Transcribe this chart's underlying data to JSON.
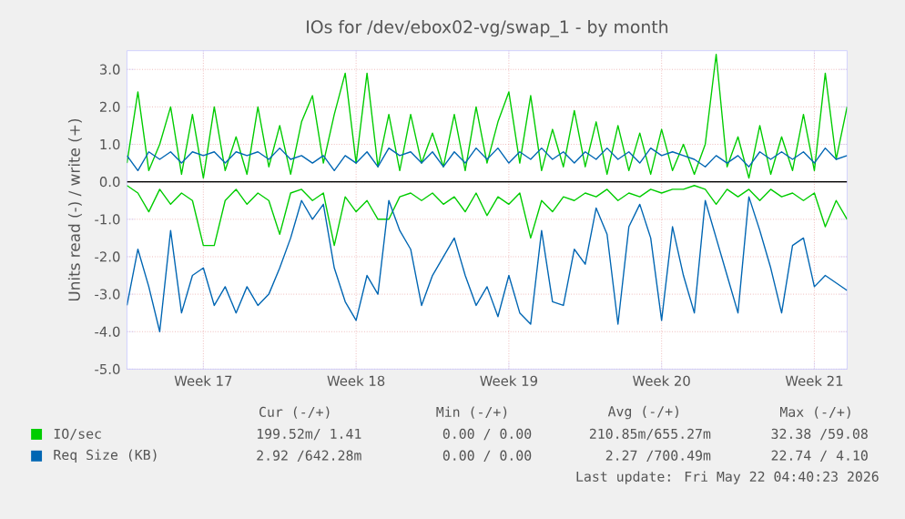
{
  "chart_data": {
    "type": "line",
    "title": "IOs for /dev/ebox02-vg/swap_1 - by month",
    "ylabel": "Units read (-) / write (+)",
    "xlim": [
      "2026-04-20",
      "2026-05-23"
    ],
    "ylim": [
      -5,
      3.5
    ],
    "xticks": [
      {
        "value": "2026-04-23T12:00",
        "label": "Week 17"
      },
      {
        "value": "2026-04-30T12:00",
        "label": "Week 18"
      },
      {
        "value": "2026-05-07T12:00",
        "label": "Week 19"
      },
      {
        "value": "2026-05-14T12:00",
        "label": "Week 20"
      },
      {
        "value": "2026-05-21T12:00",
        "label": "Week 21"
      }
    ],
    "yticks": [
      {
        "value": -5,
        "label": "-5.0"
      },
      {
        "value": -4,
        "label": "-4.0"
      },
      {
        "value": -3,
        "label": "-3.0"
      },
      {
        "value": -2,
        "label": "-2.0"
      },
      {
        "value": -1,
        "label": "-1.0"
      },
      {
        "value": 0,
        "label": "0.0"
      },
      {
        "value": 1,
        "label": "1.0"
      },
      {
        "value": 2,
        "label": "2.0"
      },
      {
        "value": 3,
        "label": "3.0"
      }
    ],
    "grid": true,
    "legend": "bottom",
    "marker": "none",
    "line_style": "solid",
    "ref_lines": [
      {
        "axis": "y",
        "value": 0,
        "color": "#000000"
      }
    ],
    "x": [
      "2026-04-20",
      "2026-04-20T12:00",
      "2026-04-21",
      "2026-04-21T12:00",
      "2026-04-22",
      "2026-04-22T12:00",
      "2026-04-23",
      "2026-04-23T12:00",
      "2026-04-24",
      "2026-04-24T12:00",
      "2026-04-25",
      "2026-04-25T12:00",
      "2026-04-26",
      "2026-04-26T12:00",
      "2026-04-27",
      "2026-04-27T12:00",
      "2026-04-28",
      "2026-04-28T12:00",
      "2026-04-29",
      "2026-04-29T12:00",
      "2026-04-30",
      "2026-04-30T12:00",
      "2026-05-01",
      "2026-05-01T12:00",
      "2026-05-02",
      "2026-05-02T12:00",
      "2026-05-03",
      "2026-05-03T12:00",
      "2026-05-04",
      "2026-05-04T12:00",
      "2026-05-05",
      "2026-05-05T12:00",
      "2026-05-06",
      "2026-05-06T12:00",
      "2026-05-07",
      "2026-05-07T12:00",
      "2026-05-08",
      "2026-05-08T12:00",
      "2026-05-09",
      "2026-05-09T12:00",
      "2026-05-10",
      "2026-05-10T12:00",
      "2026-05-11",
      "2026-05-11T12:00",
      "2026-05-12",
      "2026-05-12T12:00",
      "2026-05-13",
      "2026-05-13T12:00",
      "2026-05-14",
      "2026-05-14T12:00",
      "2026-05-15",
      "2026-05-15T12:00",
      "2026-05-16",
      "2026-05-16T12:00",
      "2026-05-17",
      "2026-05-17T12:00",
      "2026-05-18",
      "2026-05-18T12:00",
      "2026-05-19",
      "2026-05-19T12:00",
      "2026-05-20",
      "2026-05-20T12:00",
      "2026-05-21",
      "2026-05-21T12:00",
      "2026-05-22",
      "2026-05-22T12:00",
      "2026-05-23"
    ],
    "series": [
      {
        "color": "#00cc00",
        "values": [
          -0.1,
          -0.3,
          -0.8,
          -0.2,
          -0.6,
          -0.3,
          -0.5,
          -1.7,
          -1.7,
          -0.5,
          -0.2,
          -0.6,
          -0.3,
          -0.5,
          -1.4,
          -0.3,
          -0.2,
          -0.5,
          -0.3,
          -1.7,
          -0.4,
          -0.8,
          -0.5,
          -1.0,
          -1.0,
          -0.4,
          -0.3,
          -0.5,
          -0.3,
          -0.6,
          -0.4,
          -0.8,
          -0.3,
          -0.9,
          -0.4,
          -0.6,
          -0.3,
          -1.5,
          -0.5,
          -0.8,
          -0.4,
          -0.5,
          -0.3,
          -0.4,
          -0.2,
          -0.5,
          -0.3,
          -0.4,
          -0.2,
          -0.3,
          -0.2,
          -0.2,
          -0.1,
          -0.2,
          -0.6,
          -0.2,
          -0.4,
          -0.2,
          -0.5,
          -0.2,
          -0.4,
          -0.3,
          -0.5,
          -0.3,
          -1.2,
          -0.5,
          -1.0
        ]
      },
      {
        "name": "IO/sec",
        "color": "#00cc00",
        "values": [
          0.5,
          2.4,
          0.3,
          1.0,
          2.0,
          0.2,
          1.8,
          0.1,
          2.0,
          0.3,
          1.2,
          0.2,
          2.0,
          0.4,
          1.5,
          0.2,
          1.6,
          2.3,
          0.5,
          1.8,
          2.9,
          0.5,
          2.9,
          0.4,
          1.8,
          0.3,
          1.8,
          0.5,
          1.3,
          0.4,
          1.8,
          0.3,
          2.0,
          0.5,
          1.6,
          2.4,
          0.5,
          2.3,
          0.3,
          1.4,
          0.4,
          1.9,
          0.4,
          1.6,
          0.2,
          1.5,
          0.3,
          1.3,
          0.2,
          1.4,
          0.3,
          1.0,
          0.2,
          1.0,
          3.4,
          0.4,
          1.2,
          0.1,
          1.5,
          0.2,
          1.2,
          0.3,
          1.8,
          0.3,
          2.9,
          0.6,
          2.0
        ]
      },
      {
        "color": "#0066b3",
        "values": [
          -3.3,
          -1.8,
          -2.8,
          -4.0,
          -1.3,
          -3.5,
          -2.5,
          -2.3,
          -3.3,
          -2.8,
          -3.5,
          -2.8,
          -3.3,
          -3.0,
          -2.3,
          -1.5,
          -0.5,
          -1.0,
          -0.6,
          -2.3,
          -3.2,
          -3.7,
          -2.5,
          -3.0,
          -0.5,
          -1.3,
          -1.8,
          -3.3,
          -2.5,
          -2.0,
          -1.5,
          -2.5,
          -3.3,
          -2.8,
          -3.6,
          -2.5,
          -3.5,
          -3.8,
          -1.3,
          -3.2,
          -3.3,
          -1.8,
          -2.2,
          -0.7,
          -1.4,
          -3.8,
          -1.2,
          -0.6,
          -1.5,
          -3.7,
          -1.2,
          -2.5,
          -3.5,
          -0.5,
          -1.5,
          -2.5,
          -3.5,
          -0.4,
          -1.3,
          -2.3,
          -3.5,
          -1.7,
          -1.5,
          -2.8,
          -2.5,
          -2.7,
          -2.9
        ]
      },
      {
        "name": "Req Size (KB)",
        "color": "#0066b3",
        "values": [
          0.7,
          0.3,
          0.8,
          0.6,
          0.8,
          0.5,
          0.8,
          0.7,
          0.8,
          0.5,
          0.8,
          0.7,
          0.8,
          0.6,
          0.9,
          0.6,
          0.7,
          0.5,
          0.7,
          0.3,
          0.7,
          0.5,
          0.8,
          0.4,
          0.9,
          0.7,
          0.8,
          0.5,
          0.8,
          0.4,
          0.8,
          0.5,
          0.9,
          0.6,
          0.9,
          0.5,
          0.8,
          0.6,
          0.9,
          0.6,
          0.8,
          0.5,
          0.8,
          0.6,
          0.9,
          0.6,
          0.8,
          0.5,
          0.9,
          0.7,
          0.8,
          0.7,
          0.6,
          0.4,
          0.7,
          0.5,
          0.7,
          0.4,
          0.8,
          0.6,
          0.8,
          0.6,
          0.8,
          0.5,
          0.9,
          0.6,
          0.7
        ]
      }
    ],
    "annotations": [
      "Cur (-/+)",
      "Min (-/+)",
      "Avg (-/+)",
      "Max (-/+)",
      "199.52m/ 1.41",
      "0.00 / 0.00",
      "210.85m/655.27m",
      "32.38 /59.08",
      "2.92 /642.28m",
      "0.00 / 0.00",
      "2.27 /700.49m",
      "22.74 / 4.10",
      "Last update: Fri May 22 04:40:23 2026"
    ]
  }
}
